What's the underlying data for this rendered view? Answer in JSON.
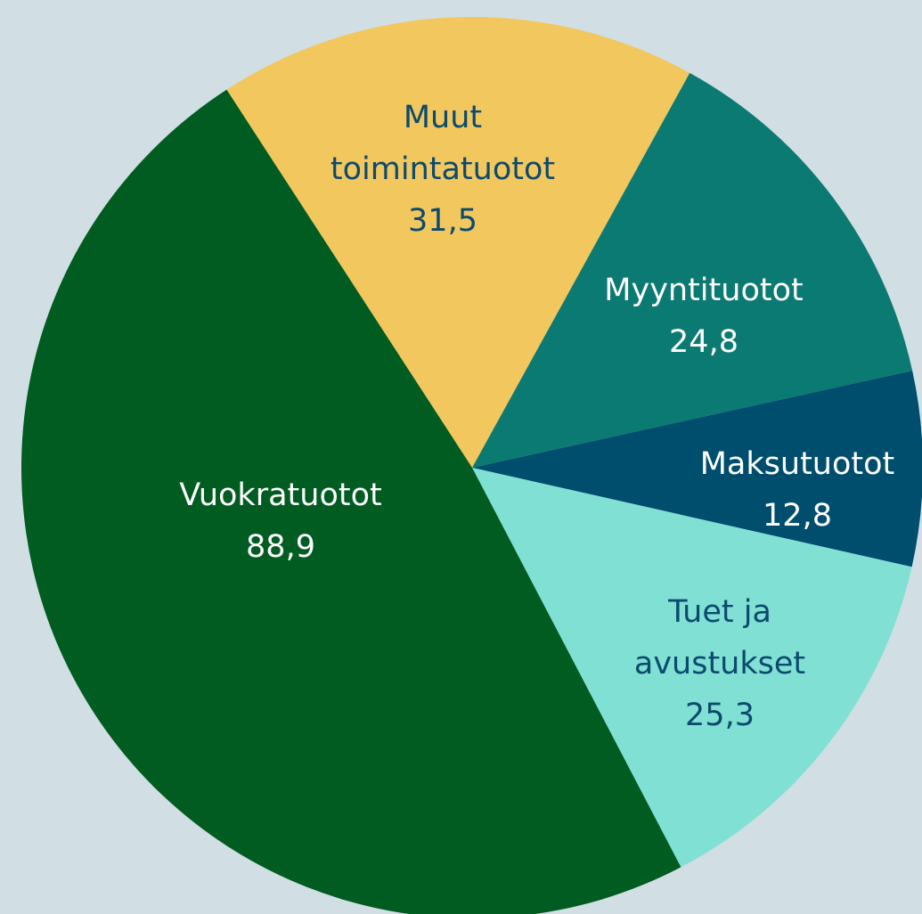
{
  "chart_data": {
    "type": "pie",
    "categories": [
      "Muut toimintatuotot",
      "Myyntituotot",
      "Maksutuotot",
      "Tuet ja avustukset",
      "Vuokratuotot"
    ],
    "values": [
      31.5,
      24.8,
      12.8,
      25.3,
      88.9
    ],
    "value_labels": [
      "31,5",
      "24,8",
      "12,8",
      "25,3",
      "88,9"
    ],
    "colors": [
      "#f2c75e",
      "#0a7a72",
      "#004e6d",
      "#80e0d4",
      "#005c21"
    ],
    "label_colors": [
      "#0c4a6e",
      "#ffffff",
      "#ffffff",
      "#0c4a6e",
      "#ffffff"
    ]
  }
}
